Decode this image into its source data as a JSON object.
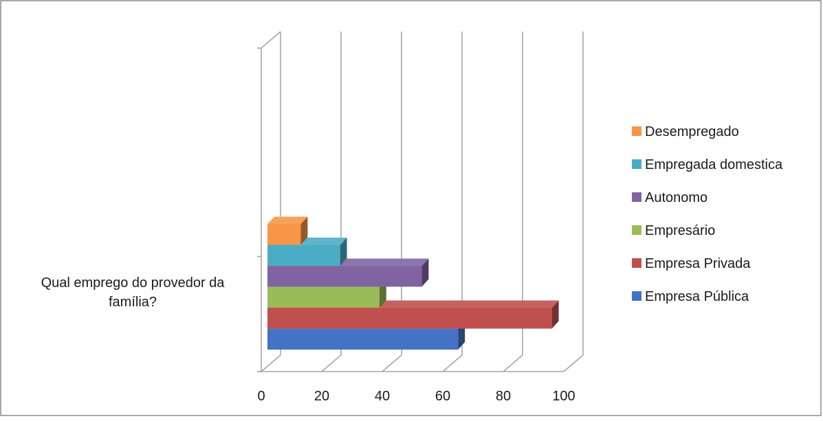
{
  "chart_data": {
    "type": "bar",
    "orientation": "horizontal",
    "three_d": true,
    "categories": [
      "Qual emprego do provedor da família?"
    ],
    "category_label_lines": [
      "Qual emprego do provedor da",
      "família?"
    ],
    "series": [
      {
        "name": "Empresa Pública",
        "values": [
          63
        ],
        "color": "#4472C4"
      },
      {
        "name": "Empresa Privada",
        "values": [
          94
        ],
        "color": "#C0504D"
      },
      {
        "name": "Empresário",
        "values": [
          37
        ],
        "color": "#9BBB59"
      },
      {
        "name": "Autonomo",
        "values": [
          51
        ],
        "color": "#8064A2"
      },
      {
        "name": "Empregada domestica",
        "values": [
          24
        ],
        "color": "#4BACC6"
      },
      {
        "name": "Desempregado",
        "values": [
          11
        ],
        "color": "#F79646"
      }
    ],
    "xlim": [
      0,
      100
    ],
    "x_ticks": [
      0,
      20,
      40,
      60,
      80,
      100
    ],
    "grid": true,
    "legend_position": "right",
    "legend_order": [
      "Desempregado",
      "Empregada domestica",
      "Autonomo",
      "Empresário",
      "Empresa Privada",
      "Empresa Pública"
    ]
  }
}
